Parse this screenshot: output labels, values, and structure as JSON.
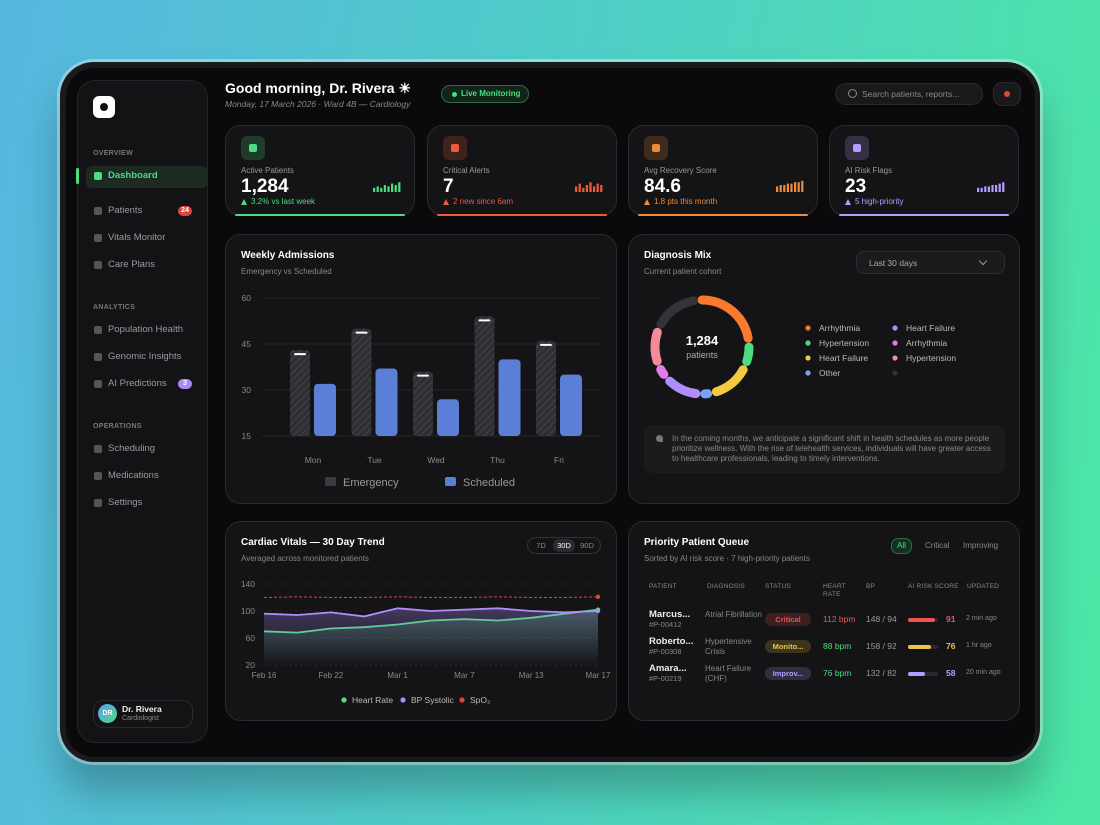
{
  "sidebar": {
    "active": "Dashboard",
    "sections": [
      {
        "label": "OVERVIEW",
        "items": [
          {
            "label": "Dashboard"
          },
          {
            "label": "Patients",
            "badge": 24,
            "badge_color": "#e0453a"
          },
          {
            "label": "Vitals Monitor"
          },
          {
            "label": "Care Plans"
          }
        ]
      },
      {
        "label": "ANALYTICS",
        "items": [
          {
            "label": "Population Health"
          },
          {
            "label": "Genomic Insights"
          },
          {
            "label": "AI Predictions",
            "badge": 3,
            "badge_color": "#a88bf5"
          }
        ]
      },
      {
        "label": "OPERATIONS",
        "items": [
          {
            "label": "Scheduling"
          },
          {
            "label": "Medications"
          },
          {
            "label": "Settings"
          }
        ]
      }
    ],
    "user": {
      "initials": "DR",
      "name": "Dr. Rivera",
      "role": "Cardiologist"
    }
  },
  "header": {
    "greeting": "Good morning, Dr. Rivera ☀",
    "date": "Monday, 17 March 2026 · Ward 4B — Cardiology",
    "status": "Live Monitoring",
    "search_placeholder": "Search patients, reports..."
  },
  "kpis": [
    {
      "label": "Active Patients",
      "value": "1,284",
      "delta": "3.2% vs last week",
      "color": "#4ade80",
      "spark": [
        3,
        4,
        3,
        5,
        4,
        6,
        5,
        7
      ]
    },
    {
      "label": "Critical Alerts",
      "value": "7",
      "delta": "2 new since 6am",
      "color": "#ef5a3c",
      "spark": [
        4,
        6,
        3,
        5,
        7,
        4,
        6,
        5
      ]
    },
    {
      "label": "Avg Recovery Score",
      "value": "84.6",
      "delta": "1.8 pts this month",
      "color": "#f08a3c",
      "spark": [
        4,
        5,
        5,
        6,
        6,
        7,
        7,
        8
      ]
    },
    {
      "label": "AI Risk Flags",
      "value": "23",
      "delta": "5 high-priority",
      "color": "#b79cff",
      "spark": [
        3,
        3,
        4,
        4,
        5,
        5,
        6,
        7
      ]
    }
  ],
  "chart_data": [
    {
      "type": "bar",
      "title": "Weekly Admissions",
      "subtitle": "Emergency vs Scheduled",
      "categories": [
        "Mon",
        "Tue",
        "Wed",
        "Thu",
        "Fri"
      ],
      "series": [
        {
          "name": "Emergency",
          "color": "#3a3a3f",
          "values": [
            43,
            50,
            36,
            54,
            46
          ]
        },
        {
          "name": "Scheduled",
          "color": "#5b7fd6",
          "values": [
            32,
            37,
            27,
            40,
            35
          ]
        }
      ],
      "ylim": [
        15,
        60
      ],
      "yticks": [
        15,
        30,
        45,
        60
      ],
      "grid": true,
      "legend": "bottom"
    },
    {
      "type": "pie",
      "title": "Diagnosis Mix",
      "subtitle": "Current patient cohort",
      "center_value": "1,284",
      "center_label": "patients",
      "filter": "Last 30 days",
      "categories": [
        "Arrhythmia",
        "Hypertension",
        "Heart Failure",
        "Other",
        "Heart Failure",
        "Arrhythmia",
        "Hypertension",
        null
      ],
      "values": [
        25,
        8,
        15,
        4,
        13,
        5,
        13,
        17
      ],
      "colors": [
        "#f97a2c",
        "#4ade80",
        "#f5c842",
        "#7aa2f7",
        "#b18cff",
        "#e07be8",
        "#f48a9a",
        "#333338"
      ],
      "note": "In the coming months, we anticipate a significant shift in health schedules as more people prioritize wellness. With the rise of telehealth services, individuals will have greater access to healthcare professionals, leading to timely interventions."
    },
    {
      "type": "line",
      "title": "Cardiac Vitals — 30 Day Trend",
      "subtitle": "Averaged across monitored patients",
      "ranges": [
        "7D",
        "30D",
        "90D"
      ],
      "selected_range": "30D",
      "categories": [
        "Feb 16",
        null,
        "Feb 22",
        null,
        "Mar 1",
        null,
        "Mar 7",
        null,
        "Mar 13",
        null,
        "Mar 17"
      ],
      "series": [
        {
          "name": "Heart Rate",
          "color": "#4ade80",
          "values": [
            70,
            68,
            74,
            76,
            80,
            86,
            88,
            86,
            90,
            96,
            102
          ]
        },
        {
          "name": "BP Systolic",
          "color": "#b18cff",
          "values": [
            96,
            94,
            98,
            92,
            104,
            100,
            102,
            104,
            100,
            98,
            100
          ]
        },
        {
          "name": "SpO₂",
          "color": "#e0453a",
          "dash": true,
          "values": [
            120,
            121,
            120,
            120,
            121,
            120,
            120,
            121,
            120,
            120,
            121
          ]
        }
      ],
      "ylim": [
        20,
        140
      ],
      "yticks": [
        20,
        60,
        100,
        140
      ],
      "grid": true,
      "legend": "bottom"
    }
  ],
  "queue": {
    "title": "Priority Patient Queue",
    "subtitle": "Sorted by AI risk score · 7 high-priority patients",
    "filters": [
      "All",
      "Critical",
      "Improving"
    ],
    "selected_filter": "All",
    "columns": [
      "PATIENT",
      "DIAGNOSIS",
      "STATUS",
      "HEART RATE",
      "BP",
      "AI RISK SCORE",
      "UPDATED"
    ],
    "rows": [
      {
        "name": "Marcus...",
        "id": "#P-00412",
        "diagnosis": "Atrial Fibrillation",
        "status": "Critical",
        "status_color": "#f05252",
        "heart_rate": "112 bpm",
        "hr_color": "#f05252",
        "bp": "148 / 94",
        "risk": 91,
        "risk_color": "#f05252",
        "updated": "2 min ago"
      },
      {
        "name": "Roberto...",
        "id": "#P-00308",
        "diagnosis": "Hypertensive Crisis",
        "status": "Monito...",
        "status_color": "#e8c547",
        "heart_rate": "88 bpm",
        "hr_color": "#4ade80",
        "bp": "158 / 92",
        "risk": 76,
        "risk_color": "#e8c547",
        "updated": "1 hr ago"
      },
      {
        "name": "Amara...",
        "id": "#P-00219",
        "diagnosis": "Heart Failure (CHF)",
        "status": "Improv...",
        "status_color": "#b49cff",
        "heart_rate": "76 bpm",
        "hr_color": "#4ade80",
        "bp": "132 / 82",
        "risk": 58,
        "risk_color": "#b49cff",
        "updated": "20 min ago"
      }
    ]
  }
}
